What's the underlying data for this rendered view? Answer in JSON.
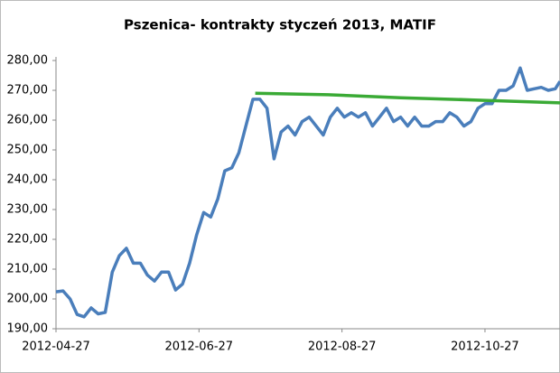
{
  "chart_data": {
    "type": "line",
    "title": "Pszenica- kontrakty styczeń 2013, MATIF",
    "xlim": [
      "2012-04-27",
      "2012-11-28"
    ],
    "xticks": [
      "2012-04-27",
      "2012-06-27",
      "2012-08-27",
      "2012-10-27"
    ],
    "ylim": [
      190,
      280
    ],
    "yticks": [
      {
        "value": 190,
        "label": "190,00"
      },
      {
        "value": 200,
        "label": "200,00"
      },
      {
        "value": 210,
        "label": "210,00"
      },
      {
        "value": 220,
        "label": "220,00"
      },
      {
        "value": 230,
        "label": "230,00"
      },
      {
        "value": 240,
        "label": "240,00"
      },
      {
        "value": 250,
        "label": "250,00"
      },
      {
        "value": 260,
        "label": "260,00"
      },
      {
        "value": 270,
        "label": "270,00"
      },
      {
        "value": 280,
        "label": "280,00"
      }
    ],
    "grid": false,
    "series": [
      {
        "color": "#4a7ebb",
        "x": [
          "2012-04-27",
          "2012-04-30",
          "2012-05-03",
          "2012-05-06",
          "2012-05-09",
          "2012-05-12",
          "2012-05-15",
          "2012-05-18",
          "2012-05-21",
          "2012-05-24",
          "2012-05-27",
          "2012-05-30",
          "2012-06-02",
          "2012-06-05",
          "2012-06-08",
          "2012-06-11",
          "2012-06-14",
          "2012-06-17",
          "2012-06-20",
          "2012-06-23",
          "2012-06-26",
          "2012-06-29",
          "2012-07-02",
          "2012-07-05",
          "2012-07-08",
          "2012-07-11",
          "2012-07-14",
          "2012-07-17",
          "2012-07-20",
          "2012-07-23",
          "2012-07-26",
          "2012-07-29",
          "2012-08-01",
          "2012-08-04",
          "2012-08-07",
          "2012-08-10",
          "2012-08-13",
          "2012-08-16",
          "2012-08-19",
          "2012-08-22",
          "2012-08-25",
          "2012-08-28",
          "2012-08-31",
          "2012-09-03",
          "2012-09-06",
          "2012-09-09",
          "2012-09-12",
          "2012-09-15",
          "2012-09-18",
          "2012-09-21",
          "2012-09-24",
          "2012-09-27",
          "2012-09-30",
          "2012-10-03",
          "2012-10-06",
          "2012-10-09",
          "2012-10-12",
          "2012-10-15",
          "2012-10-18",
          "2012-10-21",
          "2012-10-24",
          "2012-10-27",
          "2012-10-30",
          "2012-11-02",
          "2012-11-05",
          "2012-11-08",
          "2012-11-11",
          "2012-11-14",
          "2012-11-17",
          "2012-11-20",
          "2012-11-23",
          "2012-11-26",
          "2012-11-28"
        ],
        "values": [
          202.4,
          202.7,
          200,
          194.8,
          194,
          197,
          195,
          195.5,
          209,
          214.5,
          217,
          212,
          212,
          208,
          206,
          209,
          209,
          203,
          205,
          212,
          221.5,
          229,
          227.5,
          233.5,
          243,
          244,
          249,
          258,
          267,
          267,
          264,
          247,
          256,
          258,
          255,
          259.5,
          261,
          258,
          255,
          261,
          264,
          261,
          262.5,
          261,
          262.5,
          258,
          261,
          264,
          259.5,
          261,
          258,
          261,
          258,
          258,
          259.5,
          259.5,
          262.5,
          261,
          258,
          259.5,
          264,
          265.5,
          265.5,
          270,
          270,
          271.5,
          277.5,
          270,
          270.5,
          271,
          270,
          270.5,
          273
        ]
      },
      {
        "color": "#3aaa35",
        "x": [
          "2012-07-21",
          "2012-08-21",
          "2012-09-21",
          "2012-10-21",
          "2012-11-28"
        ],
        "values": [
          269,
          268.5,
          267.5,
          266.8,
          265.8
        ]
      }
    ]
  }
}
